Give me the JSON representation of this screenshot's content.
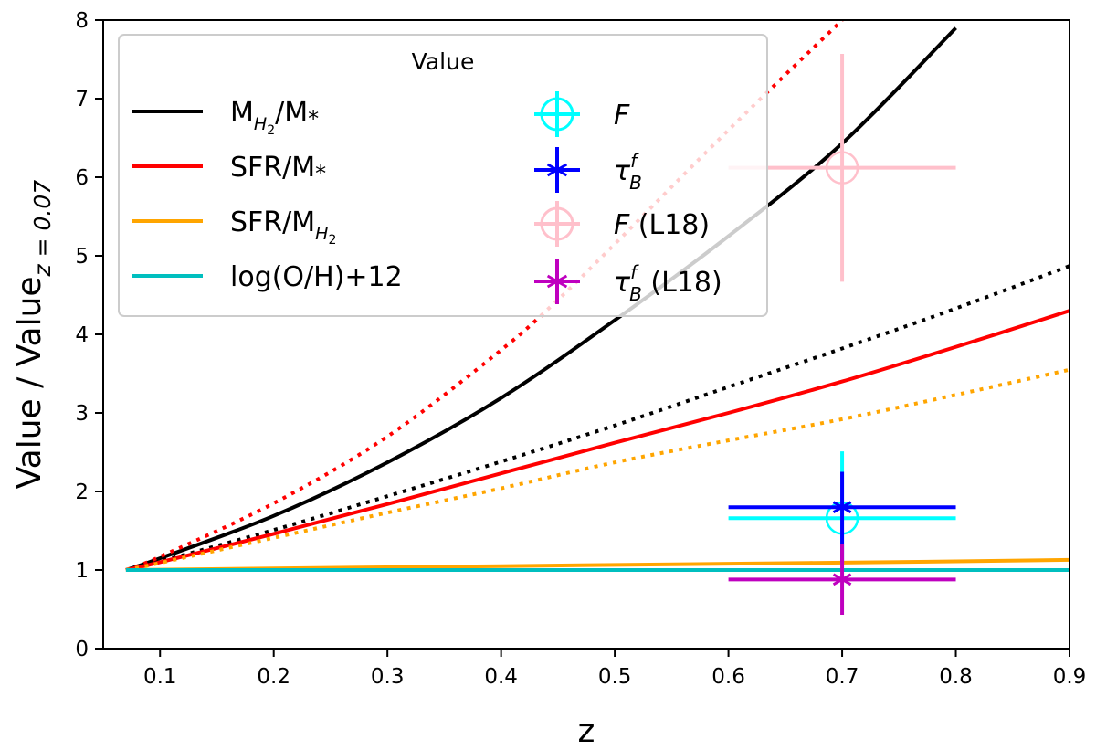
{
  "chart_data": {
    "type": "line",
    "title": "",
    "xlabel": "z",
    "ylabel": "Value / Value",
    "ylabel_sub": "z = 0.07",
    "xlim": [
      0.05,
      0.9
    ],
    "ylim": [
      0,
      8
    ],
    "xticks": [
      0.1,
      0.2,
      0.3,
      0.4,
      0.5,
      0.6,
      0.7,
      0.8,
      0.9
    ],
    "xtick_labels": [
      "0.1",
      "0.2",
      "0.3",
      "0.4",
      "0.5",
      "0.6",
      "0.7",
      "0.8",
      "0.9"
    ],
    "yticks": [
      0,
      1,
      2,
      3,
      4,
      5,
      6,
      7,
      8
    ],
    "ytick_labels": [
      "0",
      "1",
      "2",
      "3",
      "4",
      "5",
      "6",
      "7",
      "8"
    ],
    "grid": false,
    "legend": {
      "title": "Value",
      "placement": "top-left",
      "line_entries": [
        {
          "key": "mh2_mstar",
          "label": "M",
          "sub": "H",
          "subsub": "2",
          "suffix": "/M",
          "star": "*",
          "color": "#000000"
        },
        {
          "key": "sfr_mstar",
          "label": "SFR/M",
          "star": "*",
          "color": "#ff0000"
        },
        {
          "key": "sfr_mh2",
          "label": "SFR/M",
          "sub": "H",
          "subsub": "2",
          "color": "#ffa500"
        },
        {
          "key": "logoh",
          "label": "log(O/H)+12",
          "color": "#00bfbf"
        }
      ],
      "marker_entries": [
        {
          "key": "F",
          "symbol": "F",
          "extra": "",
          "marker": "circle-plus",
          "color": "#00ffff"
        },
        {
          "key": "tau",
          "symbol": "τ",
          "sup": "f",
          "sub": "B",
          "extra": "",
          "marker": "star",
          "color": "#0000ff"
        },
        {
          "key": "F_L18",
          "symbol": "F",
          "extra": "(L18)",
          "marker": "circle-plus",
          "color": "#ffc0cb"
        },
        {
          "key": "tau_L18",
          "symbol": "τ",
          "sup": "f",
          "sub": "B",
          "extra": "(L18)",
          "marker": "star",
          "color": "#bf00bf"
        }
      ]
    },
    "series": [
      {
        "name": "M_H2/M* (solid)",
        "color": "#000000",
        "style": "solid",
        "x": [
          0.07,
          0.1,
          0.2,
          0.3,
          0.4,
          0.5,
          0.6,
          0.7,
          0.8
        ],
        "y": [
          1.0,
          1.15,
          1.69,
          2.37,
          3.19,
          4.18,
          5.25,
          6.43,
          7.9
        ]
      },
      {
        "name": "M_H2/M* (dotted)",
        "color": "#000000",
        "style": "dotted",
        "x": [
          0.07,
          0.1,
          0.2,
          0.3,
          0.4,
          0.5,
          0.6,
          0.7,
          0.8,
          0.9
        ],
        "y": [
          1.0,
          1.11,
          1.51,
          1.94,
          2.38,
          2.84,
          3.33,
          3.82,
          4.33,
          4.87
        ]
      },
      {
        "name": "SFR/M* (solid)",
        "color": "#ff0000",
        "style": "solid",
        "x": [
          0.07,
          0.1,
          0.2,
          0.3,
          0.4,
          0.5,
          0.6,
          0.7,
          0.8,
          0.9
        ],
        "y": [
          1.0,
          1.1,
          1.46,
          1.84,
          2.23,
          2.62,
          3.0,
          3.4,
          3.84,
          4.3
        ]
      },
      {
        "name": "SFR/M* (dotted)",
        "color": "#ff0000",
        "style": "dotted",
        "x": [
          0.07,
          0.1,
          0.2,
          0.3,
          0.4,
          0.45,
          0.5,
          0.6,
          0.7
        ],
        "y": [
          1.0,
          1.17,
          1.85,
          2.7,
          3.8,
          4.44,
          5.15,
          6.6,
          8.0
        ]
      },
      {
        "name": "SFR/M_H2 (solid)",
        "color": "#ffa500",
        "style": "solid",
        "x": [
          0.07,
          0.2,
          0.4,
          0.6,
          0.8,
          0.9
        ],
        "y": [
          1.0,
          1.02,
          1.05,
          1.08,
          1.11,
          1.13
        ]
      },
      {
        "name": "SFR/M_H2 (dotted)",
        "color": "#ffa500",
        "style": "dotted",
        "x": [
          0.07,
          0.1,
          0.2,
          0.3,
          0.4,
          0.5,
          0.6,
          0.7,
          0.8,
          0.9
        ],
        "y": [
          1.0,
          1.09,
          1.41,
          1.73,
          2.04,
          2.37,
          2.65,
          2.92,
          3.23,
          3.55
        ]
      },
      {
        "name": "log(O/H)+12",
        "color": "#00bfbf",
        "style": "solid",
        "x": [
          0.07,
          0.9
        ],
        "y": [
          1.0,
          1.0
        ]
      }
    ],
    "points": [
      {
        "name": "F (L18)",
        "marker": "circle-plus",
        "color": "#ffc0cb",
        "x": 0.7,
        "y": 6.12,
        "xerr": 0.1,
        "yerr_low": 1.45,
        "yerr_high": 1.45
      },
      {
        "name": "F",
        "marker": "circle-plus",
        "color": "#00ffff",
        "x": 0.7,
        "y": 1.66,
        "xerr": 0.1,
        "yerr_low": 0.6,
        "yerr_high": 0.85
      },
      {
        "name": "tau_B^f",
        "marker": "star",
        "color": "#0000ff",
        "x": 0.7,
        "y": 1.8,
        "xerr": 0.1,
        "yerr_low": 0.7,
        "yerr_high": 0.45
      },
      {
        "name": "tau_B^f (L18)",
        "marker": "star",
        "color": "#bf00bf",
        "x": 0.7,
        "y": 0.88,
        "xerr": 0.1,
        "yerr_low": 0.45,
        "yerr_high": 0.45
      }
    ]
  }
}
